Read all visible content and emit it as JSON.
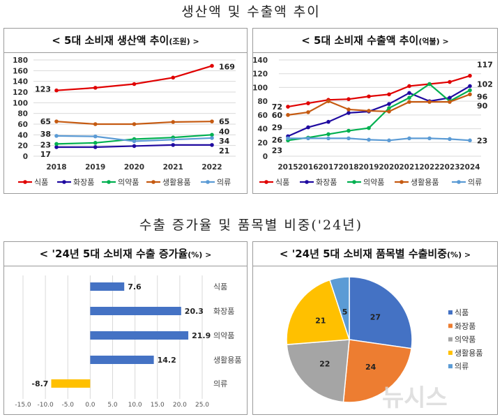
{
  "titles": {
    "top": "생산액 및 수출액 추이",
    "bottom": "수출 증가율 및 품목별 비중('24년)"
  },
  "watermark": "뉴시스",
  "chart_data": [
    {
      "type": "line",
      "title": "< 5대 소비재 생산액 추이",
      "unit": "(조원) >",
      "categories": [
        "2018",
        "2019",
        "2020",
        "2021",
        "2022"
      ],
      "ylim": [
        0,
        180
      ],
      "yticks": [
        "0",
        "20",
        "40",
        "60",
        "80",
        "100",
        "120",
        "140",
        "160",
        "180"
      ],
      "grid": true,
      "legend": "bottom",
      "series": [
        {
          "name": "식품",
          "color": "#e00000",
          "values": [
            123,
            128,
            135,
            147,
            169
          ],
          "labels": {
            "0": "123",
            "4": "169"
          }
        },
        {
          "name": "화장품",
          "color": "#1f0aa0",
          "values": [
            17,
            17,
            19,
            21,
            21
          ],
          "labels": {
            "0": "17",
            "4": "21"
          }
        },
        {
          "name": "의약품",
          "color": "#00b050",
          "values": [
            23,
            25,
            32,
            35,
            40
          ],
          "labels": {
            "0": "23",
            "4": "40"
          }
        },
        {
          "name": "생활용품",
          "color": "#c55a11",
          "values": [
            65,
            60,
            60,
            64,
            65
          ],
          "labels": {
            "0": "65",
            "4": "65"
          }
        },
        {
          "name": "의류",
          "color": "#5b9bd5",
          "values": [
            38,
            37,
            28,
            31,
            34
          ],
          "labels": {
            "0": "38",
            "4": "34"
          }
        }
      ]
    },
    {
      "type": "line",
      "title": "< 5대 소비재 수출액 추이",
      "unit": "(억불) >",
      "categories": [
        "2015",
        "2016",
        "2017",
        "2018",
        "2019",
        "2020",
        "2021",
        "2022",
        "2023",
        "2024"
      ],
      "ylim": [
        0,
        140
      ],
      "yticks": [
        "0",
        "20",
        "40",
        "60",
        "80",
        "100",
        "120",
        "140"
      ],
      "grid": true,
      "legend": "bottom",
      "series": [
        {
          "name": "식품",
          "color": "#e00000",
          "values": [
            72,
            77,
            82,
            83,
            87,
            90,
            102,
            105,
            108,
            117
          ],
          "labels": {
            "0": "72",
            "9": "117"
          }
        },
        {
          "name": "화장품",
          "color": "#1f0aa0",
          "values": [
            29,
            42,
            50,
            63,
            65,
            76,
            92,
            80,
            85,
            102
          ],
          "labels": {
            "0": "29",
            "9": "102"
          }
        },
        {
          "name": "의약품",
          "color": "#00b050",
          "values": [
            23,
            27,
            32,
            37,
            41,
            70,
            85,
            105,
            80,
            96
          ],
          "labels": {
            "0": "23",
            "9": "96"
          }
        },
        {
          "name": "생활용품",
          "color": "#c55a11",
          "values": [
            60,
            64,
            80,
            68,
            66,
            65,
            79,
            79,
            79,
            90
          ],
          "labels": {
            "0": "60",
            "9": "90"
          }
        },
        {
          "name": "의류",
          "color": "#5b9bd5",
          "values": [
            26,
            26,
            26,
            26,
            24,
            23,
            26,
            26,
            25,
            23
          ],
          "labels": {
            "0": "26",
            "9": "23"
          }
        }
      ]
    },
    {
      "type": "bar",
      "orientation": "horizontal",
      "title": "< '24년 5대 소비재 수출 증가율",
      "unit": "(%) >",
      "categories": [
        "식품",
        "화장품",
        "의약품",
        "생활용품",
        "의류"
      ],
      "values": [
        7.6,
        20.3,
        21.9,
        14.2,
        -8.7
      ],
      "value_labels": [
        "7.6",
        "20.3",
        "21.9",
        "14.2",
        "-8.7"
      ],
      "colors": [
        "#4472c4",
        "#4472c4",
        "#4472c4",
        "#4472c4",
        "#ffc000"
      ],
      "xlim": [
        -15,
        25
      ],
      "xticks": [
        "-15.0",
        "-10.0",
        "-5.0",
        "0.0",
        "5.0",
        "10.0",
        "15.0",
        "20.0",
        "25.0"
      ],
      "grid": true
    },
    {
      "type": "pie",
      "title": "< '24년 5대 소비재 품목별 수출비중",
      "unit": "(%) >",
      "legend": "right",
      "slices": [
        {
          "name": "식품",
          "value": 27,
          "color": "#4472c4"
        },
        {
          "name": "화장품",
          "value": 24,
          "color": "#ed7d31"
        },
        {
          "name": "의약품",
          "value": 22,
          "color": "#a5a5a5"
        },
        {
          "name": "생활용품",
          "value": 21,
          "color": "#ffc000"
        },
        {
          "name": "의류",
          "value": 5,
          "color": "#5b9bd5"
        }
      ]
    }
  ]
}
